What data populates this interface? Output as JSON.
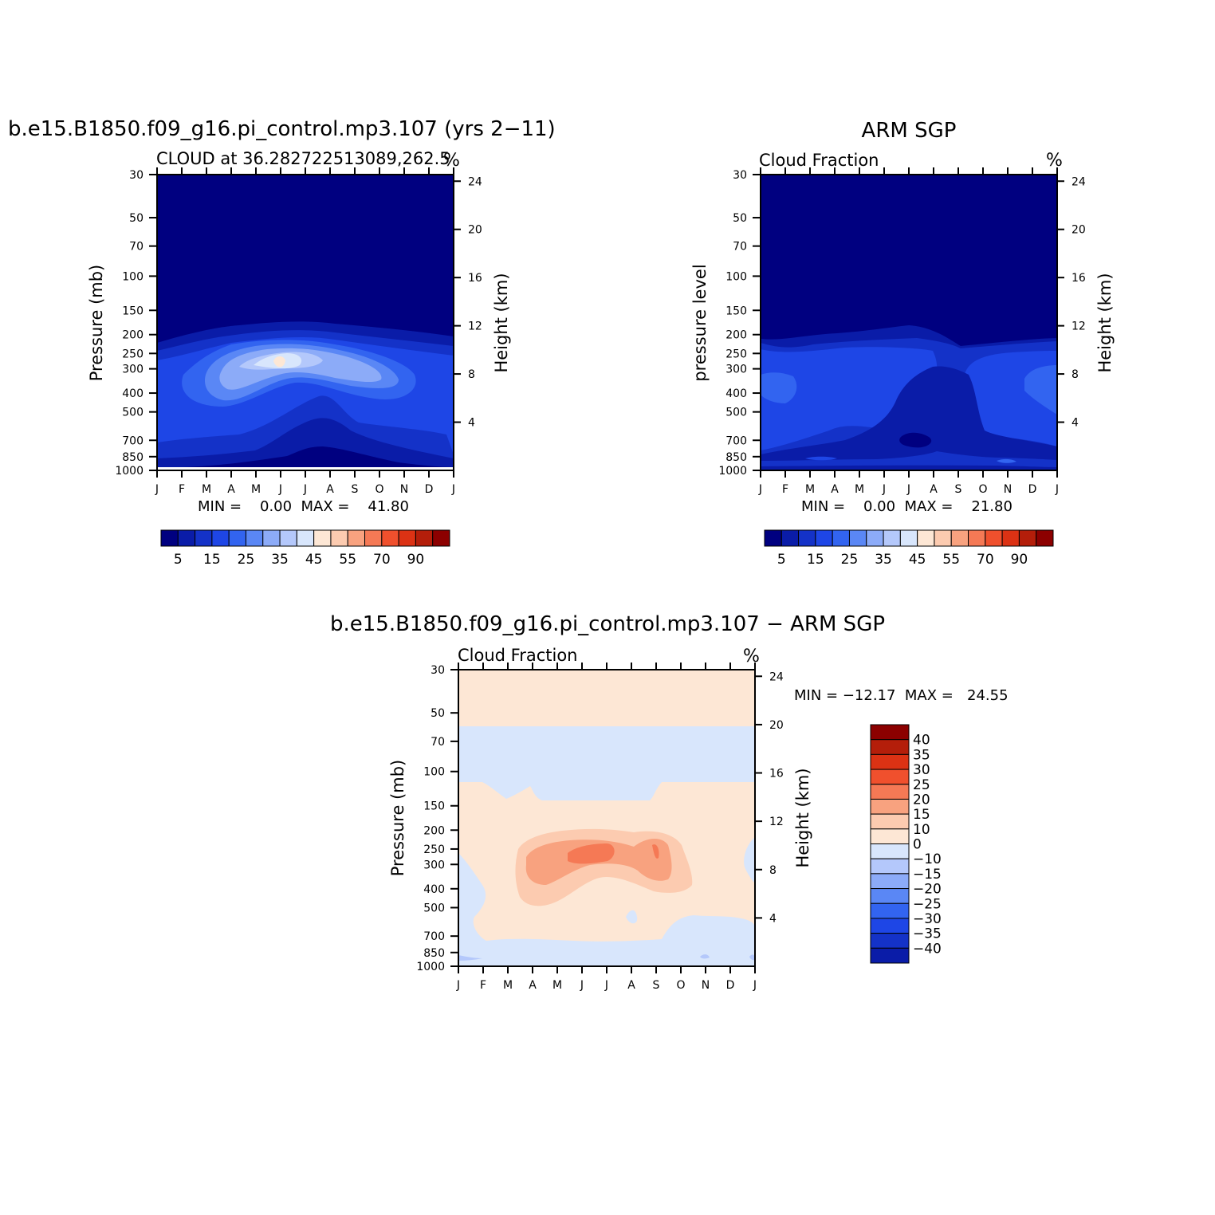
{
  "chart_data": [
    {
      "type": "heatmap",
      "title": "b.e15.B1850.f09_g16.pi_control.mp3.107 (yrs 2−11)",
      "subtitle": "CLOUD at 36.282722513089,262.5",
      "units": "%",
      "ylabel": "Pressure (mb)",
      "ylabel_right": "Height (km)",
      "x_ticks": [
        "J",
        "F",
        "M",
        "A",
        "M",
        "J",
        "J",
        "A",
        "S",
        "O",
        "N",
        "D",
        "J"
      ],
      "y_ticks": [
        "30",
        "50",
        "70",
        "100",
        "150",
        "200",
        "250",
        "300",
        "400",
        "500",
        "700",
        "850",
        "1000"
      ],
      "y_ticks_right": [
        "24",
        "20",
        "16",
        "12",
        "8",
        "4"
      ],
      "y_scale": "log",
      "ylim": [
        30,
        1000
      ],
      "min_max_text": "MIN =    0.00  MAX =    41.80",
      "min": 0.0,
      "max": 41.8,
      "colorbar_labels": [
        "5",
        "15",
        "25",
        "35",
        "45",
        "55",
        "70",
        "90"
      ],
      "colorbar_levels": [
        0,
        5,
        10,
        15,
        20,
        25,
        30,
        35,
        40,
        45,
        50,
        55,
        60,
        70,
        80,
        90,
        100
      ],
      "colorbar_orientation": "horizontal"
    },
    {
      "type": "heatmap",
      "title": "ARM SGP",
      "subtitle": "Cloud Fraction",
      "units": "%",
      "ylabel": "pressure level",
      "ylabel_right": "Height (km)",
      "x_ticks": [
        "J",
        "F",
        "M",
        "A",
        "M",
        "J",
        "J",
        "A",
        "S",
        "O",
        "N",
        "D",
        "J"
      ],
      "y_ticks": [
        "30",
        "50",
        "70",
        "100",
        "150",
        "200",
        "250",
        "300",
        "400",
        "500",
        "700",
        "850",
        "1000"
      ],
      "y_ticks_right": [
        "24",
        "20",
        "16",
        "12",
        "8",
        "4"
      ],
      "y_scale": "log",
      "ylim": [
        30,
        1000
      ],
      "min_max_text": "MIN =    0.00  MAX =    21.80",
      "min": 0.0,
      "max": 21.8,
      "colorbar_labels": [
        "5",
        "15",
        "25",
        "35",
        "45",
        "55",
        "70",
        "90"
      ],
      "colorbar_levels": [
        0,
        5,
        10,
        15,
        20,
        25,
        30,
        35,
        40,
        45,
        50,
        55,
        60,
        70,
        80,
        90,
        100
      ],
      "colorbar_orientation": "horizontal"
    },
    {
      "type": "heatmap",
      "title": "b.e15.B1850.f09_g16.pi_control.mp3.107 − ARM SGP",
      "subtitle": "Cloud Fraction",
      "units": "%",
      "ylabel": "Pressure (mb)",
      "ylabel_right": "Height (km)",
      "x_ticks": [
        "J",
        "F",
        "M",
        "A",
        "M",
        "J",
        "J",
        "A",
        "S",
        "O",
        "N",
        "D",
        "J"
      ],
      "y_ticks": [
        "30",
        "50",
        "70",
        "100",
        "150",
        "200",
        "250",
        "300",
        "400",
        "500",
        "700",
        "850",
        "1000"
      ],
      "y_ticks_right": [
        "24",
        "20",
        "16",
        "12",
        "8",
        "4"
      ],
      "y_scale": "log",
      "ylim": [
        30,
        1000
      ],
      "min_max_text": "MIN = −12.17  MAX =   24.55",
      "min": -12.17,
      "max": 24.55,
      "colorbar_labels": [
        "40",
        "35",
        "30",
        "25",
        "20",
        "15",
        "10",
        "0",
        "−10",
        "−15",
        "−20",
        "−25",
        "−30",
        "−35",
        "−40"
      ],
      "colorbar_levels": [
        -40,
        -35,
        -30,
        -25,
        -20,
        -15,
        -10,
        0,
        10,
        15,
        20,
        25,
        30,
        35,
        40
      ],
      "colorbar_orientation": "vertical"
    }
  ],
  "colors": {
    "seq": [
      "#000080",
      "#0a1ca8",
      "#1432c8",
      "#1e46e6",
      "#3264f0",
      "#5a87f5",
      "#8cabf8",
      "#b4c8fb",
      "#d8e6fc",
      "#fde7d5",
      "#fccbb0",
      "#f8a27f",
      "#f57955",
      "#f0502d",
      "#dc3214",
      "#b41e0a",
      "#8c0000"
    ],
    "div": [
      "#8c0000",
      "#b41e0a",
      "#dc3214",
      "#f0502d",
      "#f57955",
      "#f8a27f",
      "#fccbb0",
      "#fde7d5",
      "#d8e6fc",
      "#b4c8fb",
      "#8cabf8",
      "#5a87f5",
      "#3264f0",
      "#1e46e6",
      "#1432c8",
      "#0a1ca8",
      "#000080"
    ]
  }
}
